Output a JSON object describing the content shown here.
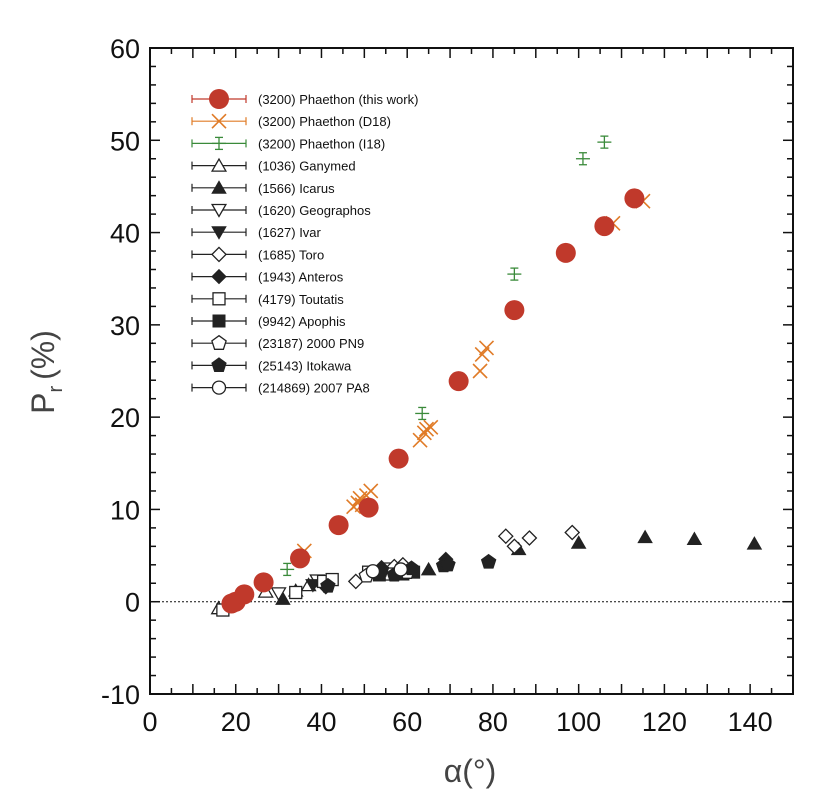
{
  "chart_data": {
    "type": "scatter",
    "xlabel": "α(°)",
    "ylabel_main": "P",
    "ylabel_sub": "r",
    "ylabel_unit": "(%)",
    "xlim": [
      0,
      150
    ],
    "ylim": [
      -10,
      60
    ],
    "xticks": [
      0,
      20,
      40,
      60,
      80,
      100,
      120,
      140
    ],
    "yticks": [
      -10,
      0,
      10,
      20,
      30,
      40,
      50,
      60
    ],
    "zero_line": "dotted",
    "legend_placement": "top-left",
    "colors": {
      "phaethon_this": "#c0392b",
      "phaethon_d18": "#e07b27",
      "phaethon_i18": "#3a8a3a",
      "others": "#222222"
    },
    "series": [
      {
        "name": "(3200) Phaethon (this work)",
        "marker": "circle-filled-large",
        "color": "#c0392b",
        "points": [
          [
            19,
            -0.2
          ],
          [
            20,
            0
          ],
          [
            22,
            0.8
          ],
          [
            26.5,
            2.1
          ],
          [
            35,
            4.7
          ],
          [
            44,
            8.3
          ],
          [
            51,
            10.2
          ],
          [
            58,
            15.5
          ],
          [
            72,
            23.9
          ],
          [
            85,
            31.6
          ],
          [
            97,
            37.8
          ],
          [
            106,
            40.7
          ],
          [
            113,
            43.7
          ]
        ]
      },
      {
        "name": "(3200) Phaethon (D18)",
        "marker": "x",
        "color": "#e07b27",
        "points": [
          [
            36,
            5.5
          ],
          [
            47.5,
            10.3
          ],
          [
            48.5,
            10.7
          ],
          [
            49,
            11.2
          ],
          [
            49.5,
            10.5
          ],
          [
            50.5,
            11.5
          ],
          [
            51.5,
            12
          ],
          [
            63,
            17.5
          ],
          [
            64,
            18.3
          ],
          [
            64.5,
            18.7
          ],
          [
            65.5,
            18.9
          ],
          [
            77,
            25
          ],
          [
            77.5,
            26.8
          ],
          [
            78.5,
            27.5
          ],
          [
            108,
            41
          ],
          [
            115,
            43.4
          ]
        ]
      },
      {
        "name": "(3200) Phaethon (I18)",
        "marker": "plus-errorbar",
        "color": "#3a8a3a",
        "points": [
          [
            32,
            3.5
          ],
          [
            58,
            15.7
          ],
          [
            63.5,
            20.4
          ],
          [
            85,
            35.5
          ],
          [
            101,
            48
          ],
          [
            106,
            49.8
          ]
        ]
      },
      {
        "name": "(1036) Ganymed",
        "marker": "triangle-open",
        "color": "#222222",
        "points": [
          [
            16,
            -0.7
          ],
          [
            27,
            1.1
          ],
          [
            37,
            1.8
          ]
        ]
      },
      {
        "name": "(1566) Icarus",
        "marker": "triangle-filled",
        "color": "#222222",
        "points": [
          [
            31,
            0.3
          ],
          [
            34,
            1.2
          ],
          [
            65,
            3.5
          ],
          [
            86,
            5.7
          ],
          [
            100,
            6.4
          ],
          [
            115.5,
            7
          ],
          [
            127,
            6.8
          ],
          [
            141,
            6.3
          ]
        ]
      },
      {
        "name": "(1620) Geographos",
        "marker": "triangle-down-open",
        "color": "#222222",
        "points": [
          [
            30,
            0.9
          ],
          [
            39,
            2.3
          ],
          [
            56,
            3.6
          ]
        ]
      },
      {
        "name": "(1627) Ivar",
        "marker": "triangle-down-filled",
        "color": "#222222",
        "points": [
          [
            38,
            1.8
          ],
          [
            60,
            3.4
          ]
        ]
      },
      {
        "name": "(1685) Toro",
        "marker": "diamond-open",
        "color": "#222222",
        "points": [
          [
            48,
            2.2
          ],
          [
            57,
            3.8
          ],
          [
            59,
            4.0
          ],
          [
            83,
            7.1
          ],
          [
            85,
            6
          ],
          [
            88.5,
            6.9
          ],
          [
            98.5,
            7.5
          ]
        ]
      },
      {
        "name": "(1943) Anteros",
        "marker": "diamond-filled",
        "color": "#222222",
        "points": [
          [
            41,
            1.6
          ],
          [
            54,
            3.7
          ],
          [
            69,
            4.6
          ]
        ]
      },
      {
        "name": "(4179) Toutatis",
        "marker": "square-open",
        "color": "#222222",
        "points": [
          [
            17,
            -0.9
          ],
          [
            34,
            1.0
          ],
          [
            40.5,
            2.2
          ],
          [
            42.5,
            2.4
          ],
          [
            51,
            3.2
          ],
          [
            56,
            3.0
          ],
          [
            58.5,
            3.1
          ]
        ]
      },
      {
        "name": "(9942) Apophis",
        "marker": "square-filled",
        "color": "#222222",
        "points": [
          [
            53.5,
            2.9
          ],
          [
            59,
            3.0
          ],
          [
            61.5,
            3.2
          ]
        ]
      },
      {
        "name": "(23187) 2000 PN9",
        "marker": "pentagon-open",
        "color": "#222222",
        "points": [
          [
            50.5,
            2.8
          ],
          [
            60,
            3.2
          ]
        ]
      },
      {
        "name": "(25143) Itokawa",
        "marker": "pentagon-filled",
        "color": "#222222",
        "points": [
          [
            41.5,
            1.7
          ],
          [
            54,
            3.4
          ],
          [
            57,
            2.9
          ],
          [
            61,
            3.6
          ],
          [
            68.5,
            3.9
          ],
          [
            69.5,
            4.0
          ],
          [
            79,
            4.3
          ]
        ]
      },
      {
        "name": "(214869) 2007 PA8",
        "marker": "circle-open",
        "color": "#222222",
        "points": [
          [
            52,
            3.3
          ],
          [
            58.5,
            3.5
          ]
        ]
      }
    ]
  }
}
